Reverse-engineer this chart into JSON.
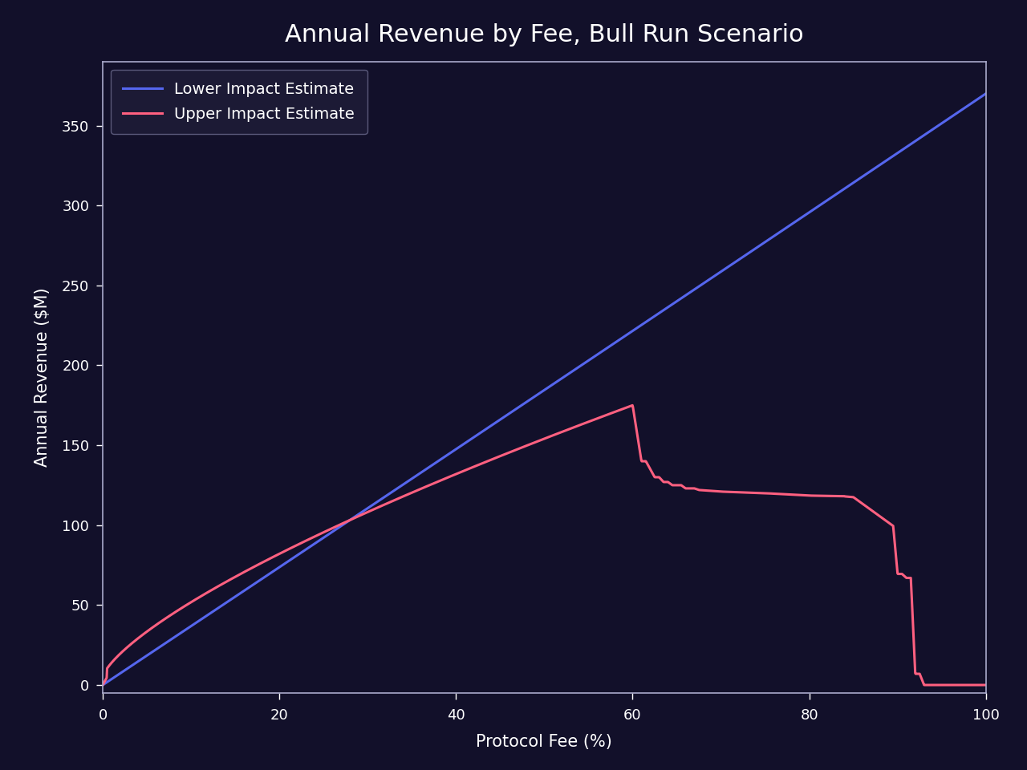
{
  "title": "Annual Revenue by Fee, Bull Run Scenario",
  "xlabel": "Protocol Fee (%)",
  "ylabel": "Annual Revenue ($M)",
  "background_color": "#12102a",
  "axes_color": "#12102a",
  "text_color": "white",
  "lower_line_color": "#5566ee",
  "upper_line_color": "#ff6080",
  "legend_facecolor": "#1e1c38",
  "legend_edgecolor": "#666688",
  "xlim": [
    0,
    100
  ],
  "ylim": [
    -5,
    390
  ],
  "yticks": [
    0,
    50,
    100,
    150,
    200,
    250,
    300,
    350
  ],
  "xticks": [
    0,
    20,
    40,
    60,
    80,
    100
  ],
  "title_fontsize": 22,
  "label_fontsize": 15,
  "tick_fontsize": 13,
  "legend_fontsize": 14,
  "line_width": 2.2
}
